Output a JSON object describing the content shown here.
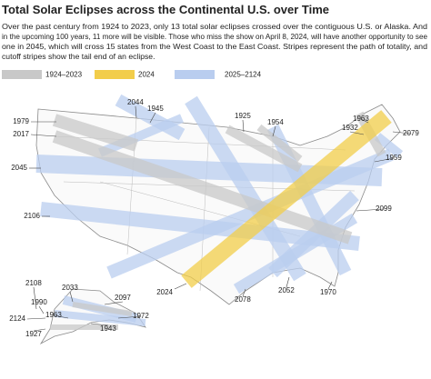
{
  "header": {
    "title": "Total Solar Eclipses across the Continental U.S. over Time",
    "description": [
      "Over the past century from 1924 to 2023, only 13 total solar eclipses crossed over the contiguous U.S. or Alaska. And",
      "in the upcoming 100 years, 11 more will be visible. Those who miss the show on April 8, 2024, will have another opportunity to see",
      "one in 2045, which will cross 15 states from the West Coast to the East Coast. Stripes represent the path of totality, and",
      "cutoff stripes show the tail end of an eclipse."
    ]
  },
  "legend": {
    "items": [
      {
        "label": "1924–2023",
        "color": "#c8c8c8"
      },
      {
        "label": "2024",
        "color": "#f2cd4a"
      },
      {
        "label": "2025–2124",
        "color": "#b9cdef"
      }
    ]
  },
  "map": {
    "labels": [
      "2044",
      "1945",
      "1925",
      "1954",
      "1979",
      "2017",
      "1963",
      "1932",
      "2079",
      "1959",
      "2045",
      "2106",
      "2099",
      "2024",
      "2078",
      "2052",
      "1970",
      "2108",
      "1990",
      "2033",
      "2097",
      "2124",
      "1963",
      "1972",
      "1927",
      "1943"
    ]
  }
}
